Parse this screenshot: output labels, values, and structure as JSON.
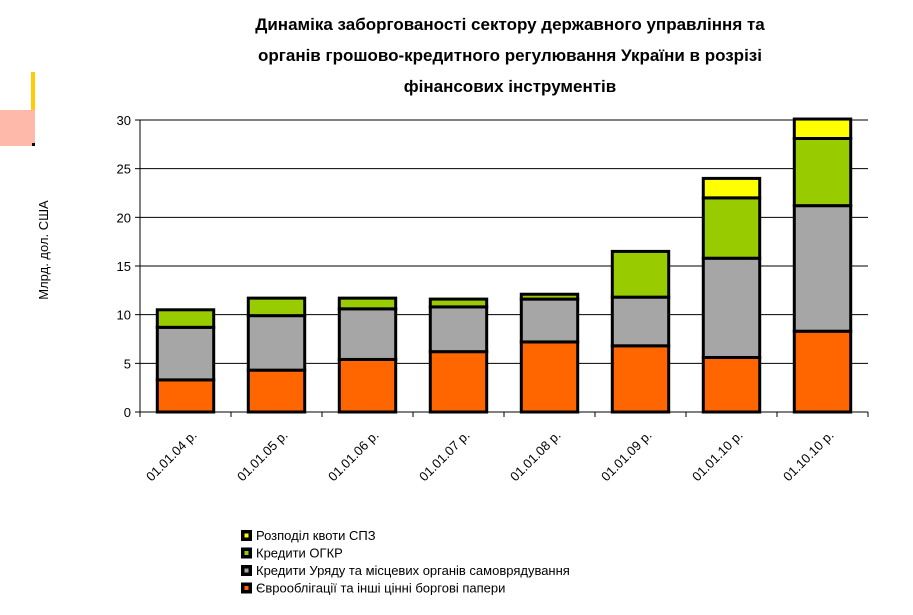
{
  "chart_data": {
    "type": "bar",
    "stacked": true,
    "title_lines": [
      "Динаміка заборгованості сектору державного управління та",
      "органів грошово-кредитного регулювання України в розрізі",
      "фінансових інструментів"
    ],
    "ylabel": "Млрд. дол. США",
    "ylim": [
      0,
      30
    ],
    "yticks": [
      0,
      5,
      10,
      15,
      20,
      25,
      30
    ],
    "grid": true,
    "legend_position": "bottom",
    "categories": [
      "01.01.04 р.",
      "01.01.05 р.",
      "01.01.06 р.",
      "01.01.07 р.",
      "01.01.08 р.",
      "01.01.09 р.",
      "01.01.10 р.",
      "01.10.10 р."
    ],
    "series": [
      {
        "name": "Єврооблігації та інші цінні боргові папери",
        "color": "#ff6600",
        "values": [
          3.3,
          4.3,
          5.4,
          6.2,
          7.2,
          6.8,
          5.6,
          8.3
        ]
      },
      {
        "name": "Кредити Уряду та місцевих органів самоврядування",
        "color": "#a6a6a6",
        "values": [
          5.4,
          5.6,
          5.2,
          4.6,
          4.4,
          5.0,
          10.2,
          12.9
        ]
      },
      {
        "name": "Кредити ОГКР",
        "color": "#99cc00",
        "values": [
          1.8,
          1.8,
          1.1,
          0.8,
          0.5,
          4.7,
          6.2,
          6.9
        ]
      },
      {
        "name": "Розподіл квоти СПЗ",
        "color": "#ffff00",
        "values": [
          0,
          0,
          0,
          0,
          0,
          0,
          2.0,
          2.0
        ]
      }
    ],
    "legend_order": [
      3,
      2,
      1,
      0
    ]
  }
}
